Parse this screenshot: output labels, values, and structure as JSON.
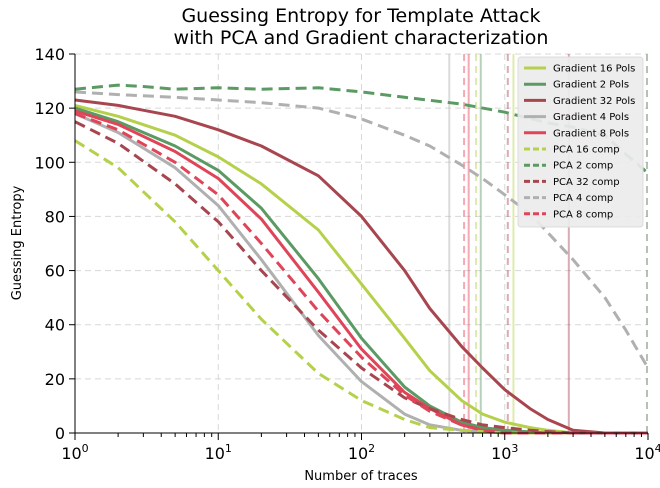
{
  "chart_data": {
    "type": "line",
    "title_lines": [
      "Guessing Entropy for Template Attack",
      "with PCA and Gradient characterization"
    ],
    "xlabel": "Number of traces",
    "ylabel": "Guessing Entropy",
    "x_scale": "log",
    "xlim": [
      1,
      10000
    ],
    "ylim": [
      0,
      140
    ],
    "x_ticks": [
      {
        "value": 1,
        "base": "10",
        "exp": "0"
      },
      {
        "value": 10,
        "base": "10",
        "exp": "1"
      },
      {
        "value": 100,
        "base": "10",
        "exp": "2"
      },
      {
        "value": 1000,
        "base": "10",
        "exp": "3"
      },
      {
        "value": 10000,
        "base": "10",
        "exp": "4"
      }
    ],
    "y_ticks": [
      {
        "value": 0,
        "label": "0"
      },
      {
        "value": 20,
        "label": "20"
      },
      {
        "value": 40,
        "label": "40"
      },
      {
        "value": 60,
        "label": "60"
      },
      {
        "value": 80,
        "label": "80"
      },
      {
        "value": 100,
        "label": "100"
      },
      {
        "value": 120,
        "label": "120"
      },
      {
        "value": 140,
        "label": "140"
      }
    ],
    "grid": true,
    "legend_position": "top-right",
    "series": [
      {
        "name": "Gradient 16 Pols",
        "color": "#b5d14b",
        "dash": "solid",
        "x": [
          1,
          2,
          5,
          10,
          20,
          50,
          100,
          200,
          300,
          500,
          700,
          1000,
          1500,
          2000,
          3000,
          10000
        ],
        "y": [
          121,
          117,
          110,
          102,
          92,
          75,
          55,
          35,
          23,
          12,
          7,
          4,
          2,
          1,
          0,
          0
        ],
        "vline": 1150
      },
      {
        "name": "Gradient 2 Pols",
        "color": "#5b9a63",
        "dash": "solid",
        "x": [
          1,
          2,
          5,
          10,
          20,
          50,
          100,
          200,
          300,
          500,
          700,
          1000,
          2000,
          10000
        ],
        "y": [
          120,
          115,
          106,
          97,
          83,
          57,
          35,
          17,
          10,
          4,
          2,
          1,
          0,
          0
        ],
        "vline": 680
      },
      {
        "name": "Gradient 32 Pols",
        "color": "#a84650",
        "dash": "solid",
        "x": [
          1,
          2,
          5,
          10,
          20,
          50,
          100,
          200,
          300,
          500,
          700,
          1000,
          1500,
          2000,
          3000,
          5000,
          10000
        ],
        "y": [
          123,
          121,
          117,
          112,
          106,
          95,
          80,
          60,
          46,
          32,
          24,
          16,
          9,
          5,
          1,
          0,
          0
        ],
        "vline": 2800
      },
      {
        "name": "Gradient 4 Pols",
        "color": "#b0b0b0",
        "dash": "solid",
        "x": [
          1,
          2,
          5,
          10,
          20,
          50,
          100,
          200,
          300,
          500,
          1000,
          10000
        ],
        "y": [
          118,
          111,
          98,
          84,
          64,
          36,
          19,
          7,
          3,
          1,
          0,
          0
        ],
        "vline": 410
      },
      {
        "name": "Gradient 8 Pols",
        "color": "#e04458",
        "dash": "solid",
        "x": [
          1,
          2,
          5,
          10,
          20,
          50,
          100,
          200,
          300,
          500,
          700,
          1000,
          10000
        ],
        "y": [
          119,
          114,
          104,
          94,
          79,
          52,
          31,
          15,
          9,
          3,
          1,
          0,
          0
        ],
        "vline": 560
      },
      {
        "name": "PCA 16 comp",
        "color": "#b5d14b",
        "dash": "dashed",
        "x": [
          1,
          2,
          5,
          10,
          20,
          50,
          100,
          200,
          300,
          500,
          1000,
          10000
        ],
        "y": [
          108,
          98,
          78,
          60,
          42,
          22,
          12,
          5,
          2,
          1,
          0,
          0
        ],
        "vline": 630
      },
      {
        "name": "PCA 2 comp",
        "color": "#5b9a63",
        "dash": "dashed",
        "x": [
          1,
          2,
          3,
          5,
          10,
          20,
          50,
          100,
          200,
          500,
          1000,
          2000,
          3000,
          5000,
          7000,
          10000
        ],
        "y": [
          127,
          128.5,
          128,
          127,
          127.5,
          127,
          127.5,
          126,
          124,
          121.5,
          118.5,
          114.5,
          113,
          110,
          103,
          96
        ],
        "vline": 10000
      },
      {
        "name": "PCA 32 comp",
        "color": "#a84650",
        "dash": "dashed",
        "x": [
          1,
          2,
          5,
          10,
          20,
          50,
          100,
          200,
          300,
          500,
          700,
          1000,
          1500,
          2000,
          3000,
          10000
        ],
        "y": [
          115,
          107,
          92,
          78,
          60,
          38,
          24,
          13,
          9,
          5,
          3,
          2,
          1,
          0.5,
          0,
          0
        ],
        "vline": 1050
      },
      {
        "name": "PCA 4 comp",
        "color": "#b0b0b0",
        "dash": "dashed",
        "x": [
          1,
          2,
          5,
          10,
          20,
          50,
          100,
          200,
          300,
          500,
          700,
          1000,
          1500,
          2000,
          3000,
          5000,
          7000,
          10000
        ],
        "y": [
          126,
          125,
          124,
          123,
          122,
          120,
          116,
          110,
          106,
          99,
          94,
          88,
          81,
          74,
          64,
          50,
          38,
          24
        ],
        "vline": 10000
      },
      {
        "name": "PCA 8 comp",
        "color": "#e04458",
        "dash": "dashed",
        "x": [
          1,
          2,
          5,
          10,
          20,
          50,
          100,
          200,
          300,
          500,
          700,
          1000,
          10000
        ],
        "y": [
          118,
          112,
          100,
          88,
          70,
          45,
          28,
          14,
          8,
          3,
          1,
          0,
          0
        ],
        "vline": 520
      }
    ]
  }
}
